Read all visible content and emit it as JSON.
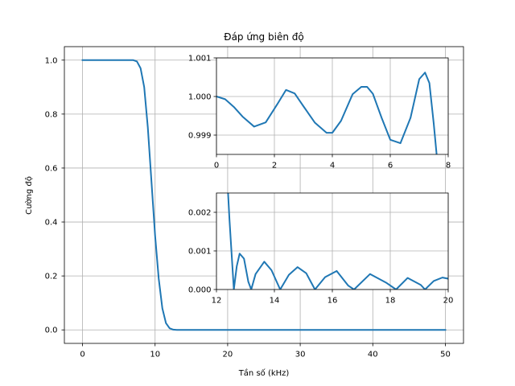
{
  "chart_data": [
    {
      "id": "main",
      "type": "line",
      "title": "Đáp ứng biên độ",
      "xlabel": "Tần số (kHz)",
      "ylabel": "Cường độ",
      "xlim": [
        -2.5,
        52.5
      ],
      "ylim": [
        -0.05,
        1.05
      ],
      "xticks": [
        0,
        10,
        20,
        30,
        40,
        50
      ],
      "yticks": [
        0.0,
        0.2,
        0.4,
        0.6,
        0.8,
        1.0
      ],
      "xtick_labels": [
        "0",
        "10",
        "20",
        "30",
        "40",
        "50"
      ],
      "ytick_labels": [
        "0.0",
        "0.2",
        "0.4",
        "0.6",
        "0.8",
        "1.0"
      ],
      "grid": true,
      "series": [
        {
          "color": "#1f77b4",
          "x": [
            0,
            2,
            4,
            6,
            7,
            7.5,
            8,
            8.5,
            9,
            9.5,
            10,
            10.5,
            11,
            11.5,
            12,
            12.5,
            13,
            14,
            16,
            20,
            30,
            40,
            50
          ],
          "y": [
            1.0,
            1.0,
            1.0,
            1.0,
            1.0,
            0.995,
            0.97,
            0.9,
            0.75,
            0.55,
            0.35,
            0.19,
            0.08,
            0.025,
            0.006,
            0.001,
            0.0,
            0.0,
            0.0,
            0.0,
            0.0,
            0.0,
            0.0
          ]
        }
      ]
    },
    {
      "id": "inset-top",
      "type": "line",
      "xlim": [
        0,
        8
      ],
      "ylim": [
        0.9985,
        1.001
      ],
      "xticks": [
        0,
        2,
        4,
        6,
        8
      ],
      "yticks": [
        0.999,
        1.0,
        1.001
      ],
      "xtick_labels": [
        "0",
        "2",
        "4",
        "6",
        "8"
      ],
      "ytick_labels": [
        "0.999",
        "1.000",
        "1.001"
      ],
      "grid": true,
      "series": [
        {
          "color": "#1f77b4",
          "x": [
            0,
            0.3,
            0.6,
            0.9,
            1.3,
            1.7,
            2.1,
            2.4,
            2.7,
            3.0,
            3.4,
            3.8,
            4.0,
            4.3,
            4.7,
            5.0,
            5.2,
            5.4,
            5.7,
            6.0,
            6.35,
            6.7,
            7.0,
            7.2,
            7.35,
            7.5,
            7.6
          ],
          "y": [
            1.0,
            0.99993,
            0.99973,
            0.99948,
            0.99922,
            0.99933,
            0.9998,
            1.00017,
            1.00008,
            0.99975,
            0.99932,
            0.99906,
            0.99906,
            0.99937,
            1.00006,
            1.00025,
            1.00025,
            1.00007,
            0.99945,
            0.99888,
            0.99879,
            0.99945,
            1.00045,
            1.00062,
            1.00035,
            0.9993,
            0.9985
          ]
        }
      ]
    },
    {
      "id": "inset-bottom",
      "type": "line",
      "xlim": [
        12,
        20
      ],
      "ylim": [
        0.0,
        0.0025
      ],
      "xticks": [
        12,
        14,
        16,
        18,
        20
      ],
      "yticks": [
        0.0,
        0.001,
        0.002
      ],
      "xtick_labels": [
        "12",
        "14",
        "16",
        "18",
        "20"
      ],
      "ytick_labels": [
        "0.000",
        "0.001",
        "0.002"
      ],
      "grid": true,
      "series": [
        {
          "color": "#1f77b4",
          "x": [
            12.4,
            12.45,
            12.55,
            12.6,
            12.7,
            12.8,
            12.95,
            13.1,
            13.2,
            13.35,
            13.65,
            13.9,
            14.2,
            14.5,
            14.8,
            15.1,
            15.4,
            15.75,
            16.15,
            16.55,
            16.75,
            17.3,
            17.85,
            18.2,
            18.6,
            19.05,
            19.2,
            19.5,
            19.8,
            20.0
          ],
          "y": [
            0.0025,
            0.0018,
            0.0006,
            0.0,
            0.0006,
            0.00093,
            0.0008,
            0.0002,
            0.0,
            0.0004,
            0.00072,
            0.0005,
            0.0,
            0.00038,
            0.00058,
            0.00042,
            0.0,
            0.00032,
            0.00048,
            0.0001,
            0.0,
            0.0004,
            0.00018,
            0.0,
            0.0003,
            0.00012,
            0.0,
            0.00022,
            0.00031,
            0.00028
          ]
        }
      ]
    }
  ]
}
